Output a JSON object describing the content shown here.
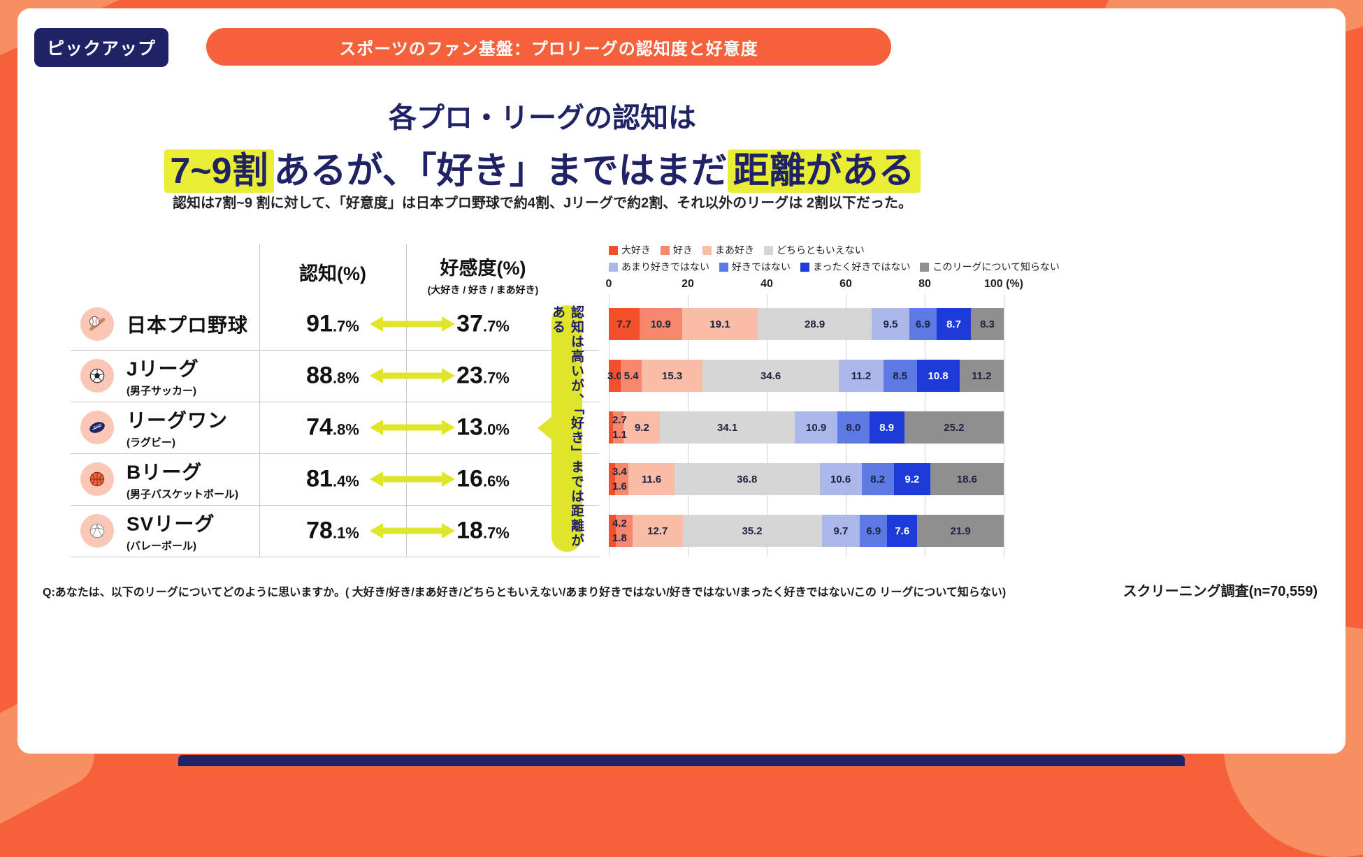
{
  "badge": "ピックアップ",
  "banner": "スポーツのファン基盤：プロリーグの認知度と好意度",
  "title": {
    "line1": "各プロ・リーグの認知は",
    "line2_hl1": "7~9割",
    "line2_mid": "あるが、「好き」まではまだ",
    "line2_hl2": "距離がある"
  },
  "subtitle": "認知は7割~9 割に対して、「好意度」は日本プロ野球で約4割、Jリーグで約2割、それ以外のリーグは 2割以下だった。",
  "table": {
    "header_ninchi": "認知(%)",
    "header_kokando": "好感度(%)",
    "header_kokando_sub": "(大好き / 好き / まあ好き)",
    "rows": [
      {
        "icon": "baseball-icon",
        "name": "日本プロ野球",
        "sub": "",
        "ninchi_big": "91",
        "ninchi_small": ".7%",
        "kokando_big": "37",
        "kokando_small": ".7%"
      },
      {
        "icon": "soccer-ball-icon",
        "name": "Jリーグ",
        "sub": "(男子サッカー)",
        "ninchi_big": "88",
        "ninchi_small": ".8%",
        "kokando_big": "23",
        "kokando_small": ".7%"
      },
      {
        "icon": "rugby-ball-icon",
        "name": "リーグワン",
        "sub": "(ラグビー)",
        "ninchi_big": "74",
        "ninchi_small": ".8%",
        "kokando_big": "13",
        "kokando_small": ".0%"
      },
      {
        "icon": "basketball-icon",
        "name": "Bリーグ",
        "sub": "(男子バスケットボール)",
        "ninchi_big": "81",
        "ninchi_small": ".4%",
        "kokando_big": "16",
        "kokando_small": ".6%"
      },
      {
        "icon": "volleyball-icon",
        "name": "SVリーグ",
        "sub": "(バレーボール)",
        "ninchi_big": "78",
        "ninchi_small": ".1%",
        "kokando_big": "18",
        "kokando_small": ".7%"
      }
    ]
  },
  "callout": "認知は高いが、「好き」までは距離がある",
  "chart_data": {
    "type": "bar",
    "subtype": "stacked-horizontal",
    "xlim": [
      0,
      100
    ],
    "x_ticks": [
      "0",
      "20",
      "40",
      "60",
      "80",
      "100 (%)"
    ],
    "grid": true,
    "legend_position": "top",
    "legend": [
      {
        "label": "大好き",
        "color": "#F1502B"
      },
      {
        "label": "好き",
        "color": "#F5886C"
      },
      {
        "label": "まあ好き",
        "color": "#F9BCA6"
      },
      {
        "label": "どちらともいえない",
        "color": "#D6D6D6"
      },
      {
        "label": "あまり好きではない",
        "color": "#ABB6E9"
      },
      {
        "label": "好きではない",
        "color": "#5D79E3"
      },
      {
        "label": "まったく好きではない",
        "color": "#1C3BD9"
      },
      {
        "label": "このリーグについて知らない",
        "color": "#8F8F8F"
      }
    ],
    "categories": [
      "日本プロ野球",
      "Jリーグ",
      "リーグワン",
      "Bリーグ",
      "SVリーグ"
    ],
    "rows": [
      {
        "category": "日本プロ野球",
        "values": [
          "7.7",
          "10.9",
          "19.1",
          "28.9",
          "9.5",
          "6.9",
          "8.7",
          "8.3"
        ],
        "outside_labels": null
      },
      {
        "category": "Jリーグ",
        "values": [
          "3.0",
          "5.4",
          "15.3",
          "34.6",
          "11.2",
          "8.5",
          "10.8",
          "11.2"
        ],
        "outside_labels": null
      },
      {
        "category": "リーグワン",
        "values": [
          "1.1",
          "2.7",
          "9.2",
          "34.1",
          "10.9",
          "8.0",
          "8.9",
          "25.2"
        ],
        "outside_labels": {
          "top": "2.7",
          "bottom": "1.1"
        }
      },
      {
        "category": "Bリーグ",
        "values": [
          "1.6",
          "3.4",
          "11.6",
          "36.8",
          "10.6",
          "8.2",
          "9.2",
          "18.6"
        ],
        "outside_labels": {
          "top": "3.4",
          "bottom": "1.6"
        }
      },
      {
        "category": "SVリーグ",
        "values": [
          "1.8",
          "4.2",
          "12.7",
          "35.2",
          "9.7",
          "6.9",
          "7.6",
          "21.9"
        ],
        "outside_labels": {
          "top": "4.2",
          "bottom": "1.8"
        }
      }
    ]
  },
  "footer": {
    "question": "Q:あなたは、以下のリーグについてどのように思いますか。( 大好き/好き/まあ好き/どちらともいえない/あまり好きではない/好きではない/まったく好きではない/この リーグについて知らない)",
    "source": "スクリーニング調査(n=70,559)"
  },
  "colors": {
    "frame_orange": "#F4613B",
    "frame_orange_light": "#F78F63",
    "navy": "#1F2264",
    "highlight_yellow": "#E9EE35",
    "arrow_yellow": "#DEE52B"
  }
}
